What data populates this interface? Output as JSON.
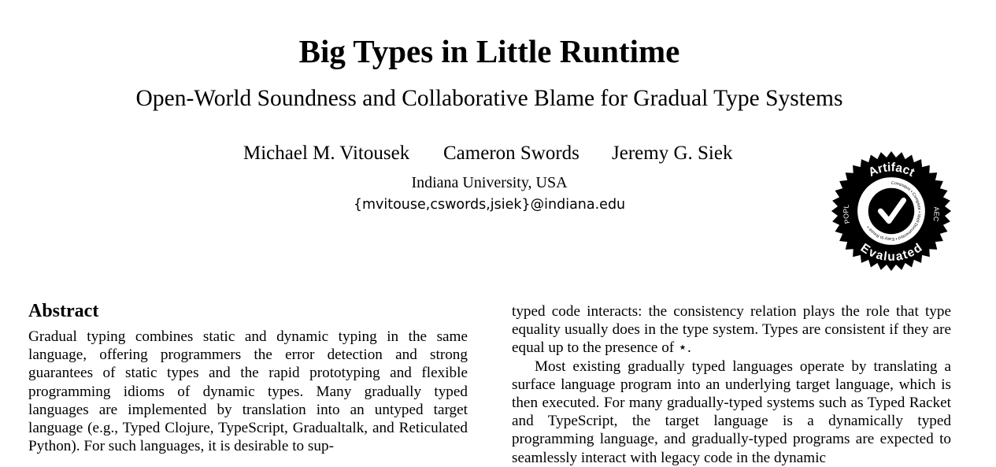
{
  "paper": {
    "title": "Big Types in Little Runtime",
    "subtitle": "Open-World Soundness and Collaborative Blame for Gradual Type Systems",
    "authors": [
      "Michael M. Vitousek",
      "Cameron Swords",
      "Jeremy G. Siek"
    ],
    "affiliation": "Indiana University, USA",
    "email": "{mvitouse,cswords,jsiek}@indiana.edu"
  },
  "badge": {
    "outer_top": "Artifact",
    "outer_bottom": "Evaluated",
    "left": "POPL",
    "right": "AEC",
    "inner_ring": "Consistent • Complete • Well Documented • Easy to Reuse •",
    "colors": {
      "ink": "#000000",
      "paper": "#ffffff"
    }
  },
  "abstract": {
    "heading": "Abstract",
    "paragraph_1": "Gradual typing combines static and dynamic typing in the same language, offering programmers the error detection and strong guarantees of static types and the rapid prototyping and flexible programming idioms of dynamic types. Many gradually typed languages are implemented by translation into an untyped target language (e.g., Typed Clojure, TypeScript, Gradualtalk, and Reticulated Python). For such languages, it is desirable to sup-"
  },
  "right_column": {
    "paragraph_1": "typed code interacts: the consistency relation plays the role that type equality usually does in the type system. Types are consistent if they are equal up to the presence of ⋆.",
    "paragraph_2": "Most existing gradually typed languages operate by translating a surface language program into an underlying target language, which is then executed. For many gradually-typed systems such as Typed Racket and TypeScript, the target language is a dynamically typed programming language, and gradually-typed programs are expected to seamlessly interact with legacy code in the dynamic"
  }
}
